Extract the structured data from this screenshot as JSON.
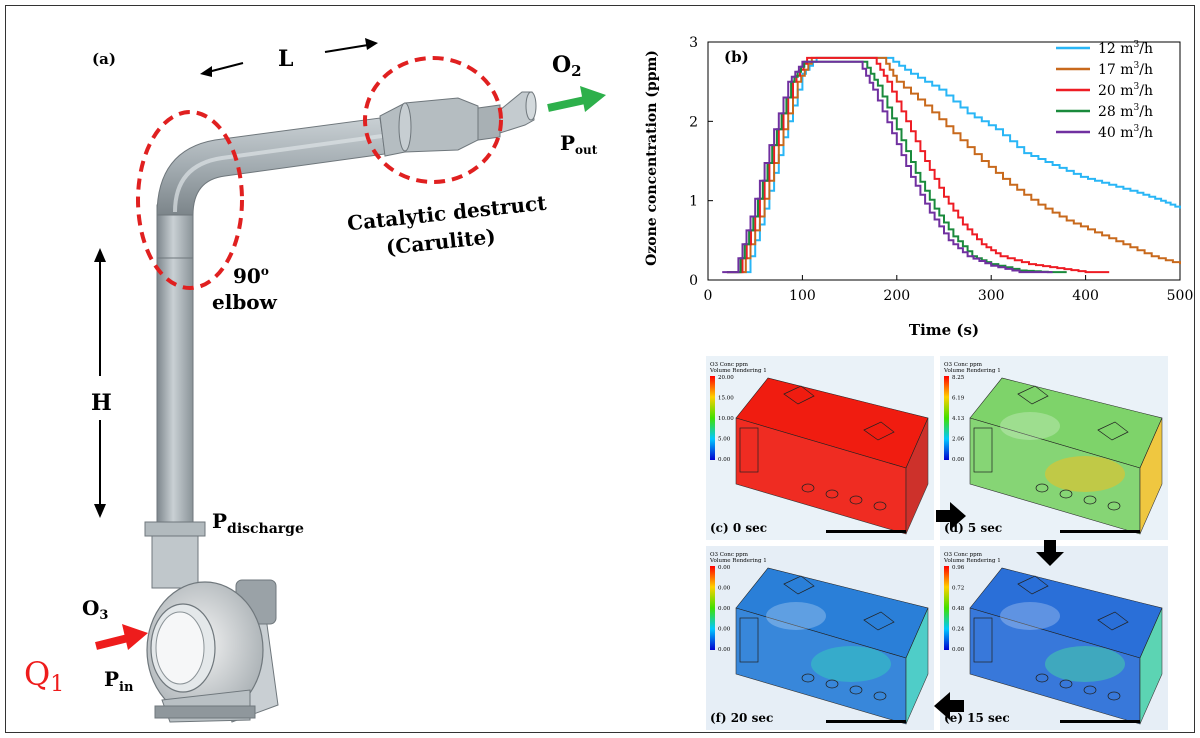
{
  "diagram": {
    "panel_label": "(a)",
    "length_label": "L",
    "height_label": "H",
    "outlet_gas": "O",
    "outlet_gas_sub": "2",
    "outlet_pressure": "P",
    "outlet_pressure_sub": "out",
    "inlet_gas": "O",
    "inlet_gas_sub": "3",
    "flow_label": "Q",
    "flow_label_sub": "1",
    "inlet_pressure": "P",
    "inlet_pressure_sub": "in",
    "discharge_pressure": "P",
    "discharge_pressure_sub": "discharge",
    "catalyst_line1": "Catalytic destruct",
    "catalyst_line2": "(Carulite)",
    "elbow_line1": "90",
    "elbow_sup": "o",
    "elbow_line2": "elbow",
    "colors": {
      "highlight": "#e02020",
      "outflow_arrow": "#2db04b",
      "inflow_arrow": "#ee1c1c",
      "pipe": "#9aa3a9"
    }
  },
  "chart_data": {
    "type": "line",
    "panel_label": "(b)",
    "xlabel": "Time (s)",
    "ylabel": "Ozone concentration (ppm)",
    "xlim": [
      0,
      500
    ],
    "ylim": [
      0,
      3
    ],
    "xticks": [
      "0",
      "100",
      "200",
      "300",
      "400",
      "500"
    ],
    "yticks": [
      "0",
      "1",
      "2",
      "3"
    ],
    "legend_position": "top-right",
    "unit_base": "m",
    "unit_sup": "3",
    "unit_tail": "/h",
    "series": [
      {
        "name": "12",
        "color": "#29b6f6",
        "points": [
          [
            20,
            0.1
          ],
          [
            40,
            0.1
          ],
          [
            60,
            0.9
          ],
          [
            80,
            1.8
          ],
          [
            100,
            2.6
          ],
          [
            115,
            2.8
          ],
          [
            190,
            2.8
          ],
          [
            215,
            2.6
          ],
          [
            245,
            2.4
          ],
          [
            275,
            2.1
          ],
          [
            305,
            1.9
          ],
          [
            335,
            1.6
          ],
          [
            365,
            1.45
          ],
          [
            395,
            1.3
          ],
          [
            425,
            1.2
          ],
          [
            455,
            1.1
          ],
          [
            480,
            1.0
          ],
          [
            500,
            0.9
          ]
        ]
      },
      {
        "name": "17",
        "color": "#c8691c",
        "points": [
          [
            20,
            0.1
          ],
          [
            35,
            0.1
          ],
          [
            55,
            0.8
          ],
          [
            75,
            1.7
          ],
          [
            95,
            2.5
          ],
          [
            110,
            2.8
          ],
          [
            185,
            2.8
          ],
          [
            200,
            2.5
          ],
          [
            230,
            2.2
          ],
          [
            260,
            1.85
          ],
          [
            290,
            1.5
          ],
          [
            320,
            1.2
          ],
          [
            350,
            0.95
          ],
          [
            380,
            0.75
          ],
          [
            410,
            0.6
          ],
          [
            440,
            0.45
          ],
          [
            470,
            0.3
          ],
          [
            500,
            0.2
          ]
        ]
      },
      {
        "name": "20",
        "color": "#ee1c24",
        "points": [
          [
            20,
            0.1
          ],
          [
            32,
            0.1
          ],
          [
            50,
            0.8
          ],
          [
            70,
            1.7
          ],
          [
            90,
            2.5
          ],
          [
            105,
            2.8
          ],
          [
            175,
            2.8
          ],
          [
            190,
            2.5
          ],
          [
            210,
            2.0
          ],
          [
            230,
            1.5
          ],
          [
            250,
            1.05
          ],
          [
            270,
            0.7
          ],
          [
            290,
            0.45
          ],
          [
            310,
            0.3
          ],
          [
            340,
            0.2
          ],
          [
            370,
            0.15
          ],
          [
            400,
            0.1
          ],
          [
            425,
            0.1
          ]
        ]
      },
      {
        "name": "28",
        "color": "#1a8a3c",
        "points": [
          [
            20,
            0.1
          ],
          [
            30,
            0.1
          ],
          [
            48,
            0.8
          ],
          [
            68,
            1.7
          ],
          [
            88,
            2.5
          ],
          [
            102,
            2.75
          ],
          [
            165,
            2.75
          ],
          [
            180,
            2.45
          ],
          [
            200,
            1.9
          ],
          [
            220,
            1.35
          ],
          [
            240,
            0.9
          ],
          [
            260,
            0.55
          ],
          [
            280,
            0.3
          ],
          [
            300,
            0.2
          ],
          [
            330,
            0.12
          ],
          [
            360,
            0.1
          ],
          [
            380,
            0.1
          ]
        ]
      },
      {
        "name": "40",
        "color": "#7030a0",
        "points": [
          [
            15,
            0.1
          ],
          [
            28,
            0.1
          ],
          [
            45,
            0.8
          ],
          [
            65,
            1.7
          ],
          [
            85,
            2.5
          ],
          [
            100,
            2.75
          ],
          [
            160,
            2.75
          ],
          [
            175,
            2.4
          ],
          [
            195,
            1.85
          ],
          [
            215,
            1.3
          ],
          [
            235,
            0.85
          ],
          [
            255,
            0.5
          ],
          [
            275,
            0.3
          ],
          [
            300,
            0.18
          ],
          [
            330,
            0.1
          ],
          [
            365,
            0.1
          ]
        ]
      }
    ]
  },
  "simulations": {
    "legend_title": "O3 Conc ppm",
    "legend_subtitle": "Volume Rendering 1",
    "frames": [
      {
        "label": "(c) 0 sec",
        "scale": [
          "20.00",
          "15.00",
          "10.00",
          "5.00",
          "0.00"
        ]
      },
      {
        "label": "(d) 5 sec",
        "scale": [
          "8.25",
          "6.19",
          "4.13",
          "2.06",
          "0.00"
        ]
      },
      {
        "label": "(f) 20 sec",
        "scale": [
          "0.00",
          "0.00",
          "0.00",
          "0.00",
          "0.00"
        ]
      },
      {
        "label": "(e) 15 sec",
        "scale": [
          "0.96",
          "0.72",
          "0.48",
          "0.24",
          "0.00"
        ]
      }
    ]
  }
}
